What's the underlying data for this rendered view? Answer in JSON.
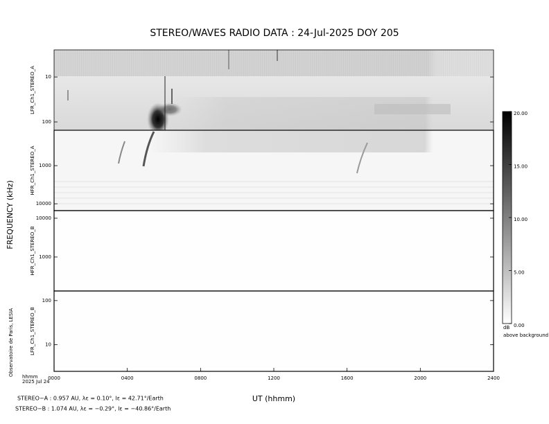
{
  "chart_data": {
    "type": "spectrogram",
    "title": "STEREO/WAVES  RADIO  DATA : 24-Jul-2025  DOY 205",
    "xlabel": "UT (hhmm)",
    "ylabel": "FREQUENCY (kHz)",
    "xlim": [
      0,
      2400
    ],
    "xticks": [
      {
        "value": 0,
        "label": "0000"
      },
      {
        "value": 400,
        "label": "0400"
      },
      {
        "value": 800,
        "label": "0800"
      },
      {
        "value": 1200,
        "label": "1200"
      },
      {
        "value": 1600,
        "label": "1600"
      },
      {
        "value": 2000,
        "label": "2000"
      },
      {
        "value": 2400,
        "label": "2400"
      }
    ],
    "log_y": true,
    "panels": [
      {
        "label": "LFR_Ch1_STEREO_A",
        "ylim": [
          153,
          2.5
        ],
        "yticks": [
          10,
          100
        ]
      },
      {
        "label": "HFR_Ch1_STEREO_A",
        "ylim": [
          15100,
          118
        ],
        "yticks": [
          1000,
          10000
        ]
      },
      {
        "label": "HFR_Ch1_STEREO_B",
        "ylim": [
          133,
          15700
        ],
        "yticks": [
          1000,
          10000
        ]
      },
      {
        "label": "LFR_Ch1_STEREO_B",
        "ylim": [
          2.5,
          165
        ],
        "yticks": [
          10,
          100
        ]
      }
    ],
    "colorbar": {
      "ylim": [
        0,
        20
      ],
      "yticks": [
        {
          "value": 0,
          "label": "0.00"
        },
        {
          "value": 5,
          "label": "5.00"
        },
        {
          "value": 10,
          "label": "10.00"
        },
        {
          "value": 15,
          "label": "15.00"
        },
        {
          "value": 20,
          "label": "20.00"
        }
      ],
      "label": "dB",
      "sublabel": "above background"
    },
    "time_label": "hhmm",
    "date_label": "2025 Jul 24",
    "credit": "Observatoire de Paris, LESIA",
    "footer": [
      "STEREO−A : 0.957 AU, λε = 0.10°, lε = 42.71°/Earth",
      "STEREO−B : 1.074 AU, λε = −0.29°, lε = −40.86°/Earth"
    ]
  }
}
